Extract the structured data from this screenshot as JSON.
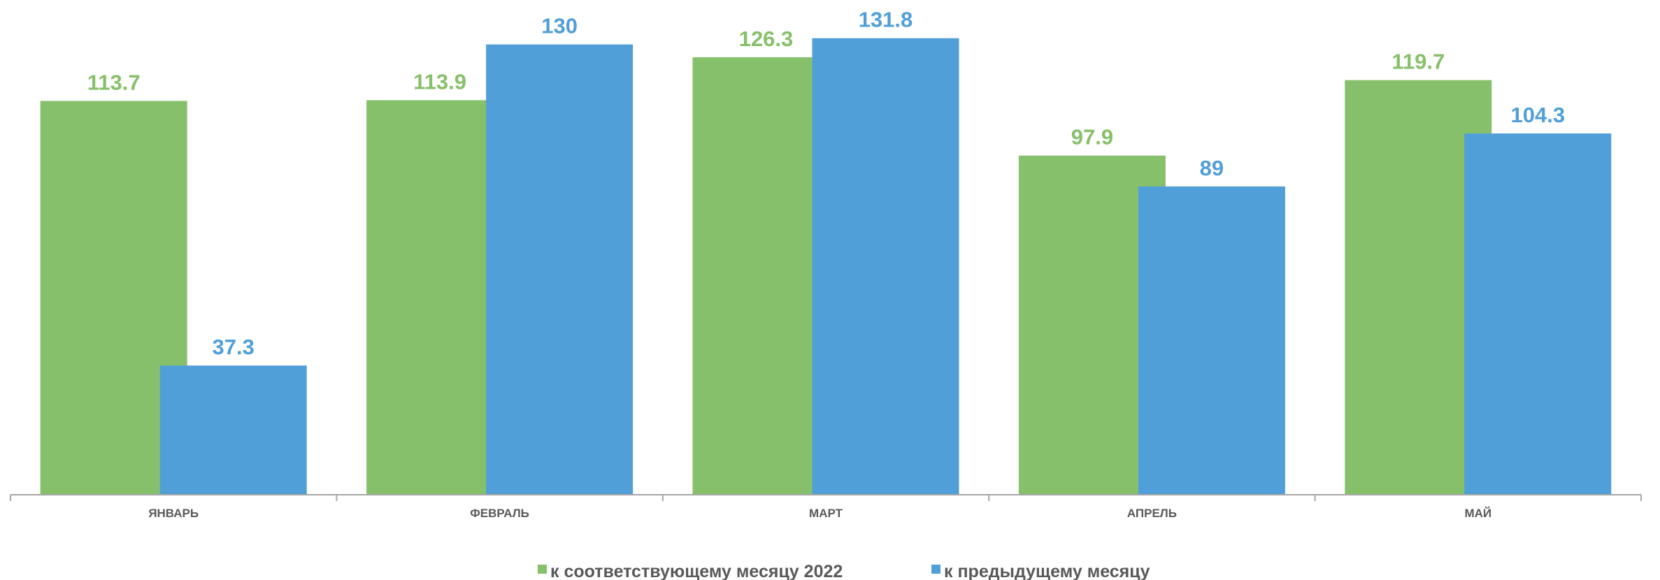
{
  "chart_data": {
    "type": "bar",
    "categories": [
      "ЯНВАРЬ",
      "ФЕВРАЛЬ",
      "МАРТ",
      "АПРЕЛЬ",
      "МАЙ"
    ],
    "series": [
      {
        "name": "к соответствующему месяцу 2022",
        "color": "#87c06a",
        "values": [
          113.7,
          113.9,
          126.3,
          97.9,
          119.7
        ]
      },
      {
        "name": "к предыдущему месяцу",
        "color": "#519fd8",
        "values": [
          37.3,
          130,
          131.8,
          89,
          104.3
        ]
      }
    ],
    "ylim": [
      0,
      140
    ],
    "legend": "bottom"
  }
}
